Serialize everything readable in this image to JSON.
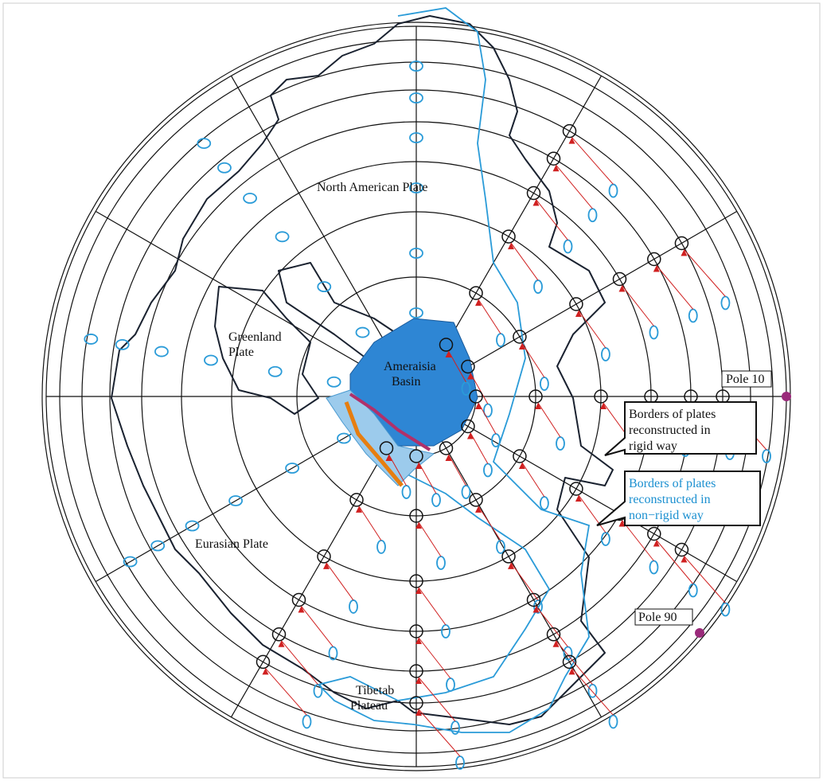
{
  "map": {
    "plates": {
      "north_american": "North American Plate",
      "greenland": [
        "Greenland",
        "Plate"
      ],
      "ameraisia": [
        "Ameraisia",
        "Basin"
      ],
      "eurasian": "Eurasian Plate",
      "tibetan": [
        "Tibetab",
        "Plateau"
      ]
    },
    "poles": [
      "Pole 10",
      "Pole 90"
    ],
    "legend": {
      "rigid": [
        "Borders of plates",
        "reconstructed in",
        "rigid way"
      ],
      "non_rigid": [
        "Borders of plates",
        "reconstructed in",
        "non−rigid way"
      ]
    }
  }
}
